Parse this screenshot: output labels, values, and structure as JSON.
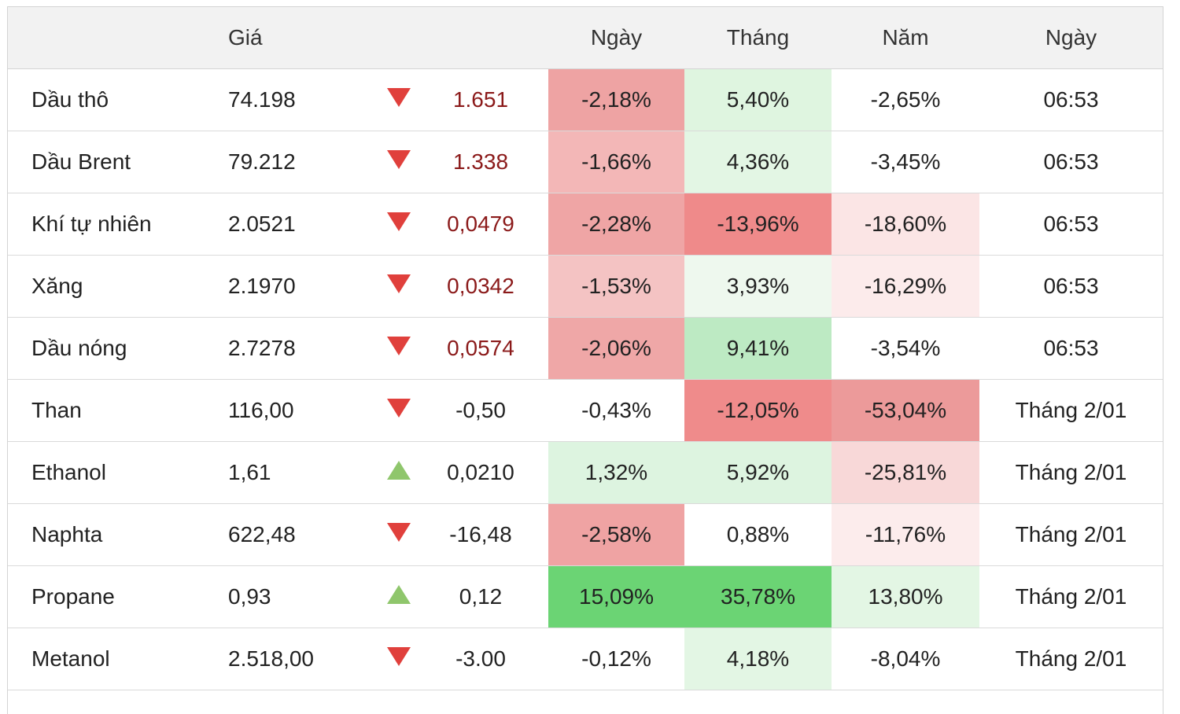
{
  "headers": {
    "name": "",
    "price": "Giá",
    "arrow": "",
    "change": "",
    "day": "Ngày",
    "month": "Tháng",
    "year": "Năm",
    "time": "Ngày"
  },
  "rows": [
    {
      "name": "Dầu thô",
      "price": "74.198",
      "direction": "down",
      "change": "1.651",
      "change_red": true,
      "day": "-2,18%",
      "day_bg": "#eea3a3",
      "month": "5,40%",
      "month_bg": "#dff5e0",
      "year": "-2,65%",
      "year_bg": "#ffffff",
      "time": "06:53"
    },
    {
      "name": "Dầu Brent",
      "price": "79.212",
      "direction": "down",
      "change": "1.338",
      "change_red": true,
      "day": "-1,66%",
      "day_bg": "#f3b7b7",
      "month": "4,36%",
      "month_bg": "#e3f6e4",
      "year": "-3,45%",
      "year_bg": "#ffffff",
      "time": "06:53"
    },
    {
      "name": "Khí tự nhiên",
      "price": "2.0521",
      "direction": "down",
      "change": "0,0479",
      "change_red": true,
      "day": "-2,28%",
      "day_bg": "#efa5a5",
      "month": "-13,96%",
      "month_bg": "#ef8a8a",
      "year": "-18,60%",
      "year_bg": "#fbe5e5",
      "time": "06:53"
    },
    {
      "name": "Xăng",
      "price": "2.1970",
      "direction": "down",
      "change": "0,0342",
      "change_red": true,
      "day": "-1,53%",
      "day_bg": "#f4c3c3",
      "month": "3,93%",
      "month_bg": "#eef8ee",
      "year": "-16,29%",
      "year_bg": "#fcebeb",
      "time": "06:53"
    },
    {
      "name": "Dầu nóng",
      "price": "2.7278",
      "direction": "down",
      "change": "0,0574",
      "change_red": true,
      "day": "-2,06%",
      "day_bg": "#efa7a7",
      "month": "9,41%",
      "month_bg": "#bdeac3",
      "year": "-3,54%",
      "year_bg": "#ffffff",
      "time": "06:53"
    },
    {
      "name": "Than",
      "price": "116,00",
      "direction": "down",
      "change": "-0,50",
      "change_red": false,
      "day": "-0,43%",
      "day_bg": "#ffffff",
      "month": "-12,05%",
      "month_bg": "#ef8b8b",
      "year": "-53,04%",
      "year_bg": "#ec9a9a",
      "time": "Tháng 2/01"
    },
    {
      "name": "Ethanol",
      "price": "1,61",
      "direction": "up",
      "change": "0,0210",
      "change_red": false,
      "day": "1,32%",
      "day_bg": "#ddf4e0",
      "month": "5,92%",
      "month_bg": "#ddf4e0",
      "year": "-25,81%",
      "year_bg": "#f8d8d8",
      "time": "Tháng 2/01"
    },
    {
      "name": "Naphta",
      "price": "622,48",
      "direction": "down",
      "change": "-16,48",
      "change_red": false,
      "day": "-2,58%",
      "day_bg": "#efa3a3",
      "month": "0,88%",
      "month_bg": "#ffffff",
      "year": "-11,76%",
      "year_bg": "#fcecec",
      "time": "Tháng 2/01"
    },
    {
      "name": "Propane",
      "price": "0,93",
      "direction": "up",
      "change": "0,12",
      "change_red": false,
      "day": "15,09%",
      "day_bg": "#6bd474",
      "month": "35,78%",
      "month_bg": "#6bd474",
      "year": "13,80%",
      "year_bg": "#e3f6e4",
      "time": "Tháng 2/01"
    },
    {
      "name": "Metanol",
      "price": "2.518,00",
      "direction": "down",
      "change": "-3.00",
      "change_red": false,
      "day": "-0,12%",
      "day_bg": "#ffffff",
      "month": "4,18%",
      "month_bg": "#e3f6e4",
      "year": "-8,04%",
      "year_bg": "#ffffff",
      "time": "Tháng 2/01"
    }
  ]
}
